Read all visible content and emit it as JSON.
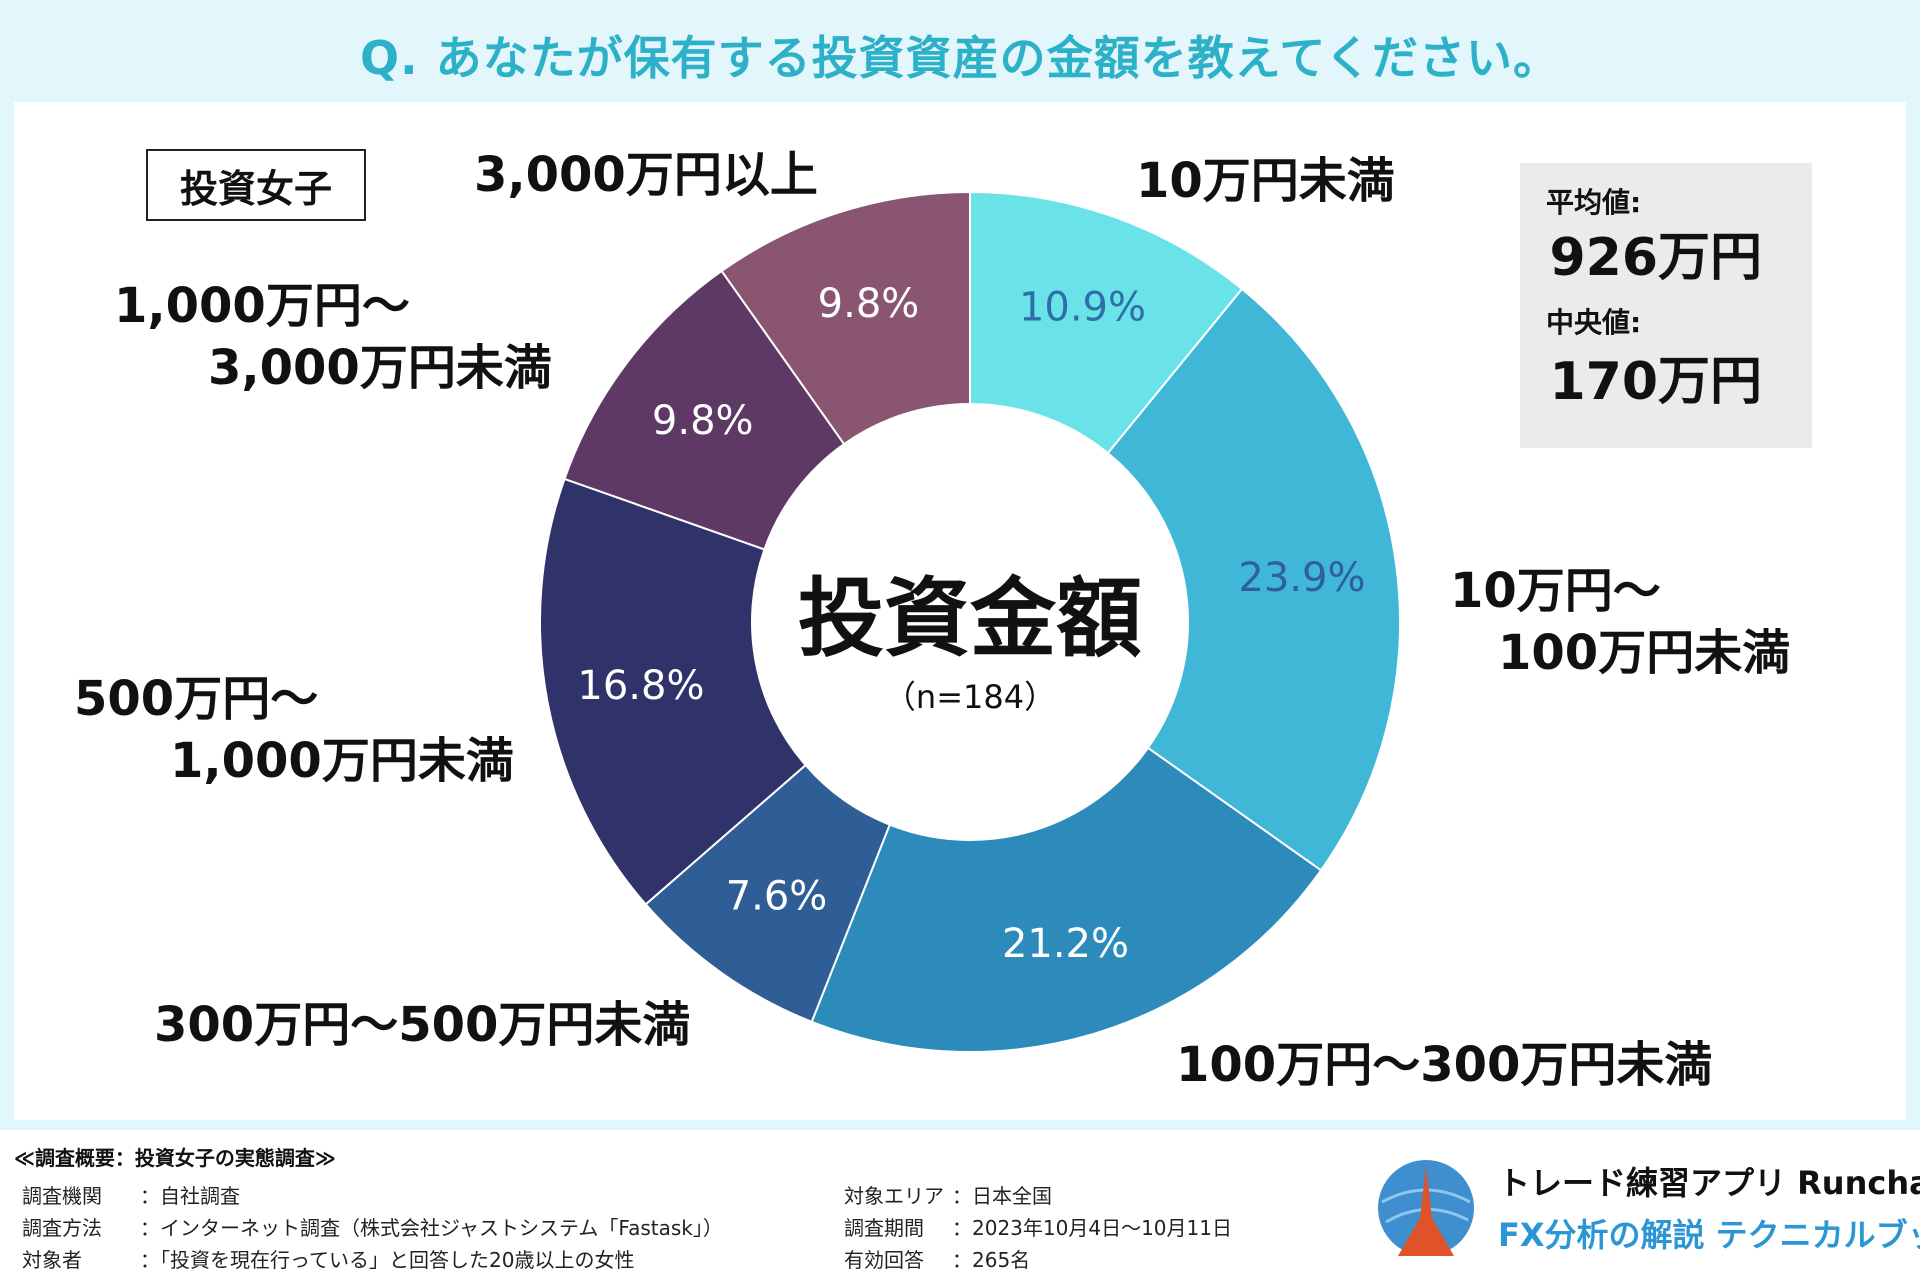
{
  "title": "Q. あなたが保有する投資資産の金額を教えてください。",
  "badge": "投資女子",
  "center": {
    "title": "投資金額",
    "n": "（n=184）"
  },
  "stats": {
    "mean_label": "平均値:",
    "mean_value": "926万円",
    "median_label": "中央値:",
    "median_value": "170万円"
  },
  "chart_data": {
    "type": "pie",
    "donut": true,
    "title": "投資金額",
    "n": 184,
    "slices": [
      {
        "label": "10万円未満",
        "value": 10.9,
        "display": "10.9%",
        "color": "#6ae3e8",
        "text_color": "#2f6fa8"
      },
      {
        "label": "10万円〜100万円未満",
        "value": 23.9,
        "display": "23.9%",
        "color": "#41b7d7",
        "text_color": "#2f5f9e"
      },
      {
        "label": "100万円〜300万円未満",
        "value": 21.2,
        "display": "21.2%",
        "color": "#2c8bba",
        "text_color": "#ffffff"
      },
      {
        "label": "300万円〜500万円未満",
        "value": 7.6,
        "display": "7.6%",
        "color": "#2f5e96",
        "text_color": "#ffffff"
      },
      {
        "label": "500万円〜1,000万円未満",
        "value": 16.8,
        "display": "16.8%",
        "color": "#30336a",
        "text_color": "#ffffff"
      },
      {
        "label": "1,000万円〜3,000万円未満",
        "value": 9.8,
        "display": "9.8%",
        "color": "#5e3965",
        "text_color": "#ffffff"
      },
      {
        "label": "3,000万円以上",
        "value": 9.8,
        "display": "9.8%",
        "color": "#8a5570",
        "text_color": "#ffffff"
      }
    ]
  },
  "outer_labels": {
    "l0": [
      "10万円未満"
    ],
    "l1": [
      "10万円〜",
      "100万円未満"
    ],
    "l2": [
      "100万円〜300万円未満"
    ],
    "l3": [
      "300万円〜500万円未満"
    ],
    "l4": [
      "500万円〜",
      "1,000万円未満"
    ],
    "l5": [
      "1,000万円〜",
      "3,000万円未満"
    ],
    "l6": [
      "3,000万円以上"
    ]
  },
  "footer": {
    "heading": "≪調査概要：投資女子の実態調査≫",
    "rows_left": [
      {
        "k": "調査機関",
        "v": "：自社調査"
      },
      {
        "k": "調査方法",
        "v": "：インターネット調査（株式会社ジャストシステム「Fastask」）"
      },
      {
        "k": "対象者",
        "v": "：「投資を現在行っている」と回答した20歳以上の女性"
      }
    ],
    "rows_right": [
      {
        "k": "対象エリア",
        "v": "：日本全国"
      },
      {
        "k": "調査期間",
        "v": "：2023年10月4日〜10月11日"
      },
      {
        "k": "有効回答",
        "v": "：265名"
      }
    ],
    "brand_line1": "トレード練習アプリ Runcha",
    "brand_line2": "FX分析の解説 テクニカルブック"
  }
}
